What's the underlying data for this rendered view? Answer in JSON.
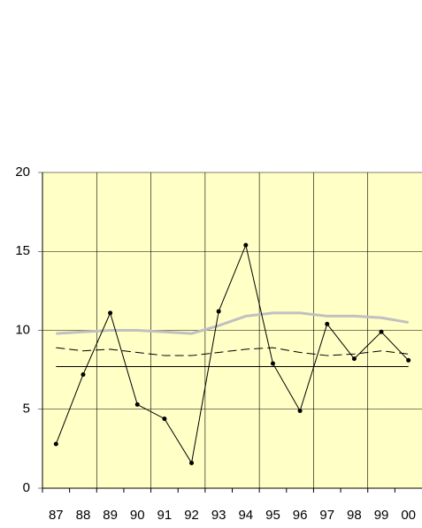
{
  "chart_data": {
    "type": "line",
    "categories": [
      "87",
      "88",
      "89",
      "90",
      "91",
      "92",
      "93",
      "94",
      "95",
      "96",
      "97",
      "98",
      "99",
      "00"
    ],
    "series": [
      {
        "color": "#000000",
        "markers": true,
        "values": [
          2.8,
          7.2,
          11.1,
          5.3,
          4.4,
          1.6,
          11.2,
          15.4,
          7.9,
          4.9,
          10.4,
          8.2,
          9.9,
          8.1
        ]
      },
      {
        "color": "#000000",
        "values": [
          7.7,
          7.7,
          7.7,
          7.7,
          7.7,
          7.7,
          7.7,
          7.7,
          7.7,
          7.7,
          7.7,
          7.7,
          7.7,
          7.7
        ]
      },
      {
        "color": "#c0c0c0",
        "width": 3,
        "values": [
          9.8,
          9.9,
          10.0,
          10.0,
          9.9,
          9.8,
          10.3,
          10.9,
          11.1,
          11.1,
          10.9,
          10.9,
          10.8,
          10.5
        ]
      },
      {
        "color": "#000000",
        "dashed": true,
        "values": [
          8.9,
          8.7,
          8.8,
          8.6,
          8.4,
          8.4,
          8.6,
          8.8,
          8.9,
          8.6,
          8.4,
          8.5,
          8.7,
          8.5
        ]
      }
    ],
    "ylim": [
      0,
      20
    ],
    "yticks": [
      0,
      5,
      10,
      15,
      20
    ],
    "grid": true,
    "background": "#ffffc6"
  }
}
